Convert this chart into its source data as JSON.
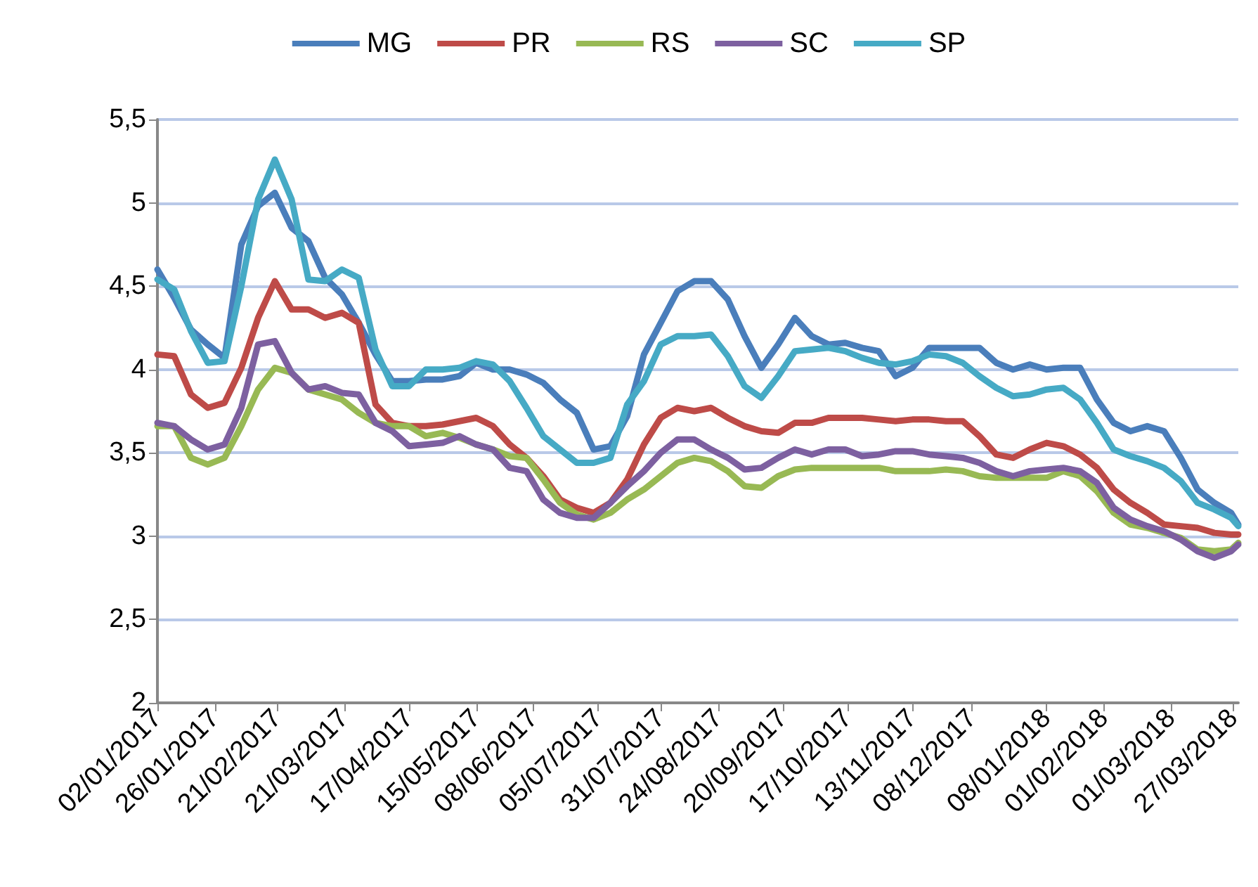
{
  "chart_data": {
    "type": "line",
    "x": [
      "2017-01-02",
      "2017-01-09",
      "2017-01-16",
      "2017-01-23",
      "2017-01-30",
      "2017-02-06",
      "2017-02-13",
      "2017-02-20",
      "2017-02-27",
      "2017-03-06",
      "2017-03-13",
      "2017-03-20",
      "2017-03-27",
      "2017-04-03",
      "2017-04-10",
      "2017-04-17",
      "2017-04-24",
      "2017-05-01",
      "2017-05-08",
      "2017-05-15",
      "2017-05-22",
      "2017-05-29",
      "2017-06-05",
      "2017-06-12",
      "2017-06-19",
      "2017-06-26",
      "2017-07-03",
      "2017-07-10",
      "2017-07-17",
      "2017-07-24",
      "2017-07-31",
      "2017-08-07",
      "2017-08-14",
      "2017-08-21",
      "2017-08-28",
      "2017-09-04",
      "2017-09-11",
      "2017-09-18",
      "2017-09-25",
      "2017-10-02",
      "2017-10-09",
      "2017-10-16",
      "2017-10-23",
      "2017-10-30",
      "2017-11-06",
      "2017-11-13",
      "2017-11-20",
      "2017-11-27",
      "2017-12-04",
      "2017-12-11",
      "2017-12-18",
      "2017-12-25",
      "2018-01-01",
      "2018-01-08",
      "2018-01-15",
      "2018-01-22",
      "2018-01-29",
      "2018-02-05",
      "2018-02-12",
      "2018-02-19",
      "2018-02-26",
      "2018-03-05",
      "2018-03-12",
      "2018-03-19",
      "2018-03-26",
      "2018-03-29"
    ],
    "series": [
      {
        "name": "MG",
        "color": "#4a7ebb",
        "values": [
          4.6,
          4.43,
          4.24,
          4.15,
          4.07,
          4.75,
          4.98,
          5.06,
          4.85,
          4.77,
          4.55,
          4.45,
          4.28,
          4.09,
          3.93,
          3.93,
          3.94,
          3.94,
          3.96,
          4.04,
          4.0,
          4.0,
          3.97,
          3.92,
          3.82,
          3.74,
          3.52,
          3.54,
          3.72,
          4.09,
          4.28,
          4.47,
          4.53,
          4.53,
          4.42,
          4.2,
          4.01,
          4.15,
          4.31,
          4.2,
          4.15,
          4.16,
          4.13,
          4.11,
          3.96,
          4.01,
          4.13,
          4.13,
          4.13,
          4.13,
          4.04,
          4.0,
          4.03,
          4.0,
          4.01,
          4.01,
          3.82,
          3.68,
          3.63,
          3.66,
          3.63,
          3.47,
          3.28,
          3.2,
          3.14,
          3.07
        ]
      },
      {
        "name": "PR",
        "color": "#be4b48",
        "values": [
          4.09,
          4.08,
          3.85,
          3.77,
          3.8,
          4.01,
          4.31,
          4.53,
          4.36,
          4.36,
          4.31,
          4.34,
          4.28,
          3.79,
          3.68,
          3.66,
          3.66,
          3.67,
          3.69,
          3.71,
          3.66,
          3.55,
          3.47,
          3.36,
          3.22,
          3.17,
          3.14,
          3.2,
          3.34,
          3.55,
          3.71,
          3.77,
          3.75,
          3.77,
          3.71,
          3.66,
          3.63,
          3.62,
          3.68,
          3.68,
          3.71,
          3.71,
          3.71,
          3.7,
          3.69,
          3.7,
          3.7,
          3.69,
          3.69,
          3.6,
          3.49,
          3.47,
          3.52,
          3.56,
          3.54,
          3.49,
          3.41,
          3.28,
          3.2,
          3.14,
          3.07,
          3.06,
          3.05,
          3.02,
          3.01,
          3.01
        ]
      },
      {
        "name": "RS",
        "color": "#98b954",
        "values": [
          3.66,
          3.66,
          3.47,
          3.43,
          3.47,
          3.66,
          3.88,
          4.01,
          3.98,
          3.88,
          3.85,
          3.82,
          3.74,
          3.68,
          3.66,
          3.66,
          3.6,
          3.62,
          3.59,
          3.55,
          3.52,
          3.48,
          3.47,
          3.34,
          3.2,
          3.13,
          3.1,
          3.14,
          3.22,
          3.28,
          3.36,
          3.44,
          3.47,
          3.45,
          3.39,
          3.3,
          3.29,
          3.36,
          3.4,
          3.41,
          3.41,
          3.41,
          3.41,
          3.41,
          3.39,
          3.39,
          3.39,
          3.4,
          3.39,
          3.36,
          3.35,
          3.35,
          3.35,
          3.35,
          3.39,
          3.36,
          3.27,
          3.14,
          3.07,
          3.05,
          3.02,
          2.99,
          2.92,
          2.91,
          2.92,
          2.96
        ]
      },
      {
        "name": "SC",
        "color": "#7d60a0",
        "values": [
          3.68,
          3.66,
          3.58,
          3.52,
          3.55,
          3.77,
          4.15,
          4.17,
          3.98,
          3.88,
          3.9,
          3.86,
          3.85,
          3.68,
          3.63,
          3.54,
          3.55,
          3.56,
          3.6,
          3.55,
          3.52,
          3.41,
          3.39,
          3.22,
          3.14,
          3.11,
          3.11,
          3.2,
          3.3,
          3.39,
          3.5,
          3.58,
          3.58,
          3.52,
          3.47,
          3.4,
          3.41,
          3.47,
          3.52,
          3.49,
          3.52,
          3.52,
          3.48,
          3.49,
          3.51,
          3.51,
          3.49,
          3.48,
          3.47,
          3.44,
          3.39,
          3.36,
          3.39,
          3.4,
          3.41,
          3.39,
          3.32,
          3.17,
          3.1,
          3.06,
          3.03,
          2.98,
          2.91,
          2.87,
          2.91,
          2.95
        ]
      },
      {
        "name": "SP",
        "color": "#46aac5",
        "values": [
          4.54,
          4.48,
          4.23,
          4.04,
          4.05,
          4.5,
          5.02,
          5.26,
          5.02,
          4.54,
          4.53,
          4.6,
          4.55,
          4.12,
          3.9,
          3.9,
          4.0,
          4.0,
          4.01,
          4.05,
          4.03,
          3.93,
          3.77,
          3.6,
          3.52,
          3.44,
          3.44,
          3.47,
          3.79,
          3.93,
          4.15,
          4.2,
          4.2,
          4.21,
          4.08,
          3.9,
          3.83,
          3.96,
          4.11,
          4.12,
          4.13,
          4.11,
          4.07,
          4.04,
          4.03,
          4.05,
          4.09,
          4.08,
          4.04,
          3.96,
          3.89,
          3.84,
          3.85,
          3.88,
          3.89,
          3.82,
          3.68,
          3.52,
          3.48,
          3.45,
          3.41,
          3.33,
          3.2,
          3.16,
          3.11,
          3.06
        ]
      }
    ],
    "xlim": [
      "2017-01-02",
      "2018-03-29"
    ],
    "xticks": [
      {
        "value": "2017-01-02",
        "label": "02/01/2017"
      },
      {
        "value": "2017-01-26",
        "label": "26/01/2017"
      },
      {
        "value": "2017-02-21",
        "label": "21/02/2017"
      },
      {
        "value": "2017-03-21",
        "label": "21/03/2017"
      },
      {
        "value": "2017-04-17",
        "label": "17/04/2017"
      },
      {
        "value": "2017-05-15",
        "label": "15/05/2017"
      },
      {
        "value": "2017-06-08",
        "label": "08/06/2017"
      },
      {
        "value": "2017-07-05",
        "label": "05/07/2017"
      },
      {
        "value": "2017-07-31",
        "label": "31/07/2017"
      },
      {
        "value": "2017-08-24",
        "label": "24/08/2017"
      },
      {
        "value": "2017-09-20",
        "label": "20/09/2017"
      },
      {
        "value": "2017-10-17",
        "label": "17/10/2017"
      },
      {
        "value": "2017-11-13",
        "label": "13/11/2017"
      },
      {
        "value": "2017-12-08",
        "label": "08/12/2017"
      },
      {
        "value": "2018-01-08",
        "label": "08/01/2018"
      },
      {
        "value": "2018-02-01",
        "label": "01/02/2018"
      },
      {
        "value": "2018-03-01",
        "label": "01/03/2018"
      },
      {
        "value": "2018-03-27",
        "label": "27/03/2018"
      }
    ],
    "ylim": [
      2,
      5.5
    ],
    "yticks": [
      2,
      {
        "value": 2.5,
        "label": "2,5"
      },
      3,
      {
        "value": 3.5,
        "label": "3,5"
      },
      4,
      {
        "value": 4.5,
        "label": "4,5"
      },
      5,
      {
        "value": 5.5,
        "label": "5,5"
      }
    ],
    "grid": "y",
    "legend": "top",
    "marker": "none",
    "line_style": "solid"
  }
}
